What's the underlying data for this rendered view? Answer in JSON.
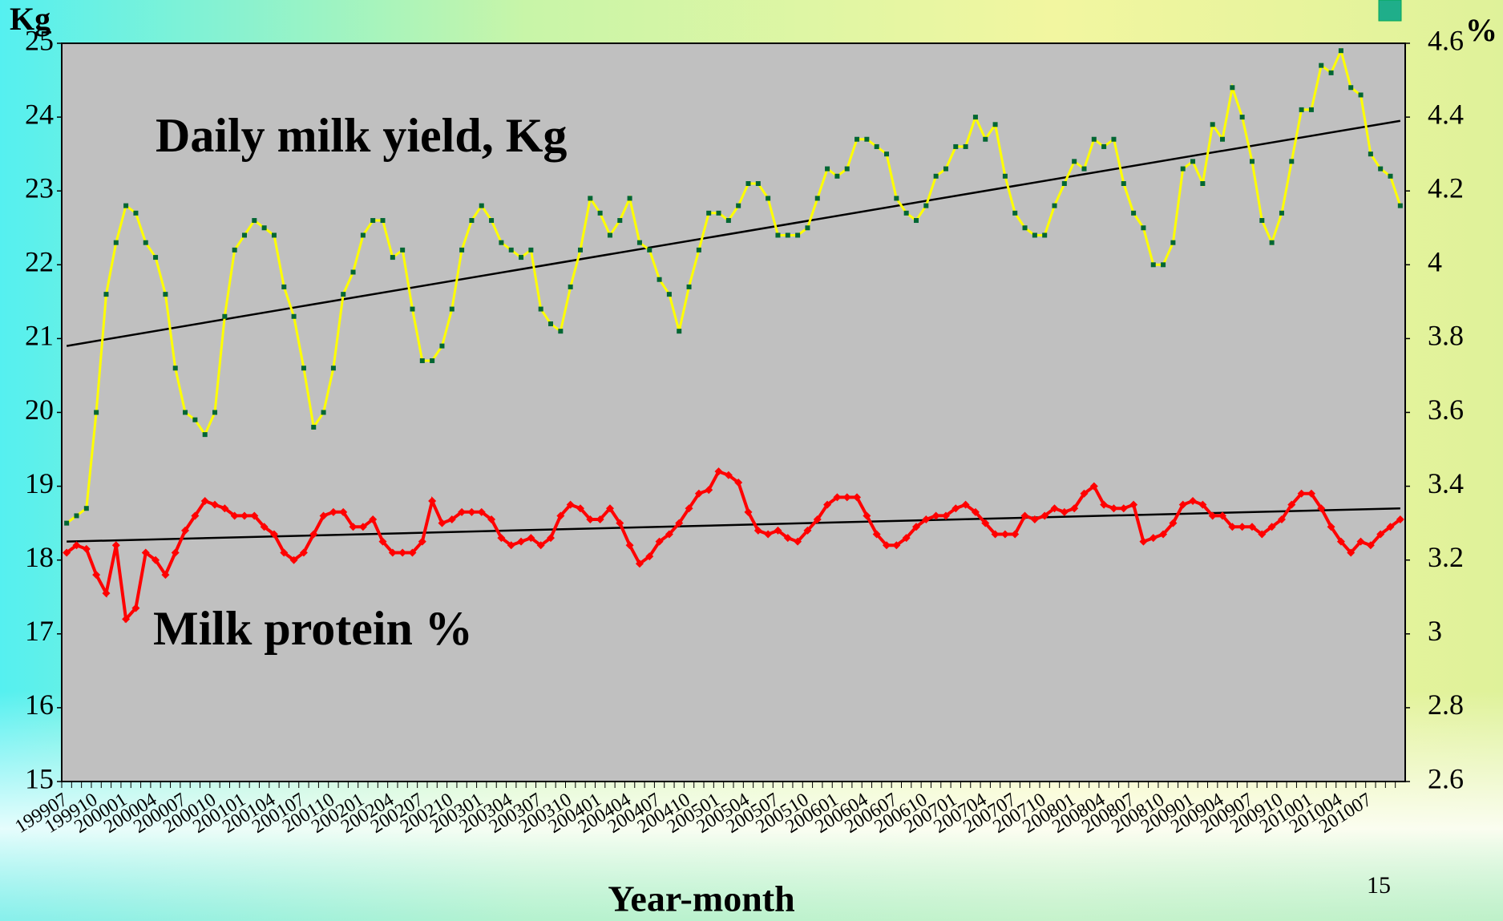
{
  "chart_data": {
    "type": "line",
    "annotations": [
      "Daily milk yield, Kg",
      "Milk protein %"
    ],
    "ylabel": "Kg",
    "y2label": "%",
    "xlabel": "Year-month",
    "page_number": "15",
    "categories": [
      "199907",
      null,
      null,
      "199910",
      null,
      null,
      "200001",
      null,
      null,
      "200004",
      null,
      null,
      "200007",
      null,
      null,
      "200010",
      null,
      null,
      "200101",
      null,
      null,
      "200104",
      null,
      null,
      "200107",
      null,
      null,
      "200110",
      null,
      null,
      "200201",
      null,
      null,
      "200204",
      null,
      null,
      "200207",
      null,
      null,
      "200210",
      null,
      null,
      "200301",
      null,
      null,
      "200304",
      null,
      null,
      "200307",
      null,
      null,
      "200310",
      null,
      null,
      "200401",
      null,
      null,
      "200404",
      null,
      null,
      "200407",
      null,
      null,
      "200410",
      null,
      null,
      "200501",
      null,
      null,
      "200504",
      null,
      null,
      "200507",
      null,
      null,
      "200510",
      null,
      null,
      "200601",
      null,
      null,
      "200604",
      null,
      null,
      "200607",
      null,
      null,
      "200610",
      null,
      null,
      "200701",
      null,
      null,
      "200704",
      null,
      null,
      "200707",
      null,
      null,
      "200710",
      null,
      null,
      "200801",
      null,
      null,
      "200804",
      null,
      null,
      "200807",
      null,
      null,
      "200810",
      null,
      null,
      "200901",
      null,
      null,
      "200904",
      null,
      null,
      "200907",
      null,
      null,
      "200910",
      null,
      null,
      "201001",
      null,
      null,
      "201004",
      null,
      null,
      "201007",
      null,
      null,
      null
    ],
    "series": [
      {
        "color": "#ffff00",
        "marker_color": "#006633",
        "marker": "square",
        "axis": "y",
        "values": [
          18.5,
          18.6,
          18.7,
          20.0,
          21.6,
          22.3,
          22.8,
          22.7,
          22.3,
          22.1,
          21.6,
          20.6,
          20.0,
          19.9,
          19.7,
          20.0,
          21.3,
          22.2,
          22.4,
          22.6,
          22.5,
          22.4,
          21.7,
          21.3,
          20.6,
          19.8,
          20.0,
          20.6,
          21.6,
          21.9,
          22.4,
          22.6,
          22.6,
          22.1,
          22.2,
          21.4,
          20.7,
          20.7,
          20.9,
          21.4,
          22.2,
          22.6,
          22.8,
          22.6,
          22.3,
          22.2,
          22.1,
          22.2,
          21.4,
          21.2,
          21.1,
          21.7,
          22.2,
          22.9,
          22.7,
          22.4,
          22.6,
          22.9,
          22.3,
          22.2,
          21.8,
          21.6,
          21.1,
          21.7,
          22.2,
          22.7,
          22.7,
          22.6,
          22.8,
          23.1,
          23.1,
          22.9,
          22.4,
          22.4,
          22.4,
          22.5,
          22.9,
          23.3,
          23.2,
          23.3,
          23.7,
          23.7,
          23.6,
          23.5,
          22.9,
          22.7,
          22.6,
          22.8,
          23.2,
          23.3,
          23.6,
          23.6,
          24.0,
          23.7,
          23.9,
          23.2,
          22.7,
          22.5,
          22.4,
          22.4,
          22.8,
          23.1,
          23.4,
          23.3,
          23.7,
          23.6,
          23.7,
          23.1,
          22.7,
          22.5,
          22.0,
          22.0,
          22.3,
          23.3,
          23.4,
          23.1,
          23.9,
          23.7,
          24.4,
          24.0,
          23.4,
          22.6,
          22.3,
          22.7,
          23.4,
          24.1,
          24.1,
          24.7,
          24.6,
          24.9,
          24.4,
          24.3,
          23.5,
          23.3,
          23.2,
          22.8
        ]
      },
      {
        "color": "#ff0000",
        "marker_color": "#ff0000",
        "marker": "diamond",
        "axis": "y2",
        "values": [
          3.22,
          3.24,
          3.23,
          3.16,
          3.11,
          3.24,
          3.04,
          3.07,
          3.22,
          3.2,
          3.16,
          3.22,
          3.28,
          3.32,
          3.36,
          3.35,
          3.34,
          3.32,
          3.32,
          3.32,
          3.29,
          3.27,
          3.22,
          3.2,
          3.22,
          3.27,
          3.32,
          3.33,
          3.33,
          3.29,
          3.29,
          3.31,
          3.25,
          3.22,
          3.22,
          3.22,
          3.25,
          3.36,
          3.3,
          3.31,
          3.33,
          3.33,
          3.33,
          3.31,
          3.26,
          3.24,
          3.25,
          3.26,
          3.24,
          3.26,
          3.32,
          3.35,
          3.34,
          3.31,
          3.31,
          3.34,
          3.3,
          3.24,
          3.19,
          3.21,
          3.25,
          3.27,
          3.3,
          3.34,
          3.38,
          3.39,
          3.44,
          3.43,
          3.41,
          3.33,
          3.28,
          3.27,
          3.28,
          3.26,
          3.25,
          3.28,
          3.31,
          3.35,
          3.37,
          3.37,
          3.37,
          3.32,
          3.27,
          3.24,
          3.24,
          3.26,
          3.29,
          3.31,
          3.32,
          3.32,
          3.34,
          3.35,
          3.33,
          3.3,
          3.27,
          3.27,
          3.27,
          3.32,
          3.31,
          3.32,
          3.34,
          3.33,
          3.34,
          3.38,
          3.4,
          3.35,
          3.34,
          3.34,
          3.35,
          3.25,
          3.26,
          3.27,
          3.3,
          3.35,
          3.36,
          3.35,
          3.32,
          3.32,
          3.29,
          3.29,
          3.29,
          3.27,
          3.29,
          3.31,
          3.35,
          3.38,
          3.38,
          3.34,
          3.29,
          3.25,
          3.22,
          3.25,
          3.24,
          3.27,
          3.29,
          3.31
        ]
      }
    ],
    "trendlines": [
      {
        "color": "#000000",
        "axis": "y",
        "values": [
          20.9,
          23.95
        ]
      },
      {
        "color": "#000000",
        "axis": "y2",
        "values": [
          3.25,
          3.34
        ]
      }
    ],
    "ylim": [
      15,
      25
    ],
    "yticks": [
      15,
      16,
      17,
      18,
      19,
      20,
      21,
      22,
      23,
      24,
      25
    ],
    "y2lim": [
      2.6,
      4.6
    ],
    "y2ticks": [
      2.6,
      2.8,
      3,
      3.2,
      3.4,
      3.6,
      3.8,
      4,
      4.2,
      4.4,
      4.6
    ],
    "plot_background": "#c0c0c0",
    "grid": false
  }
}
